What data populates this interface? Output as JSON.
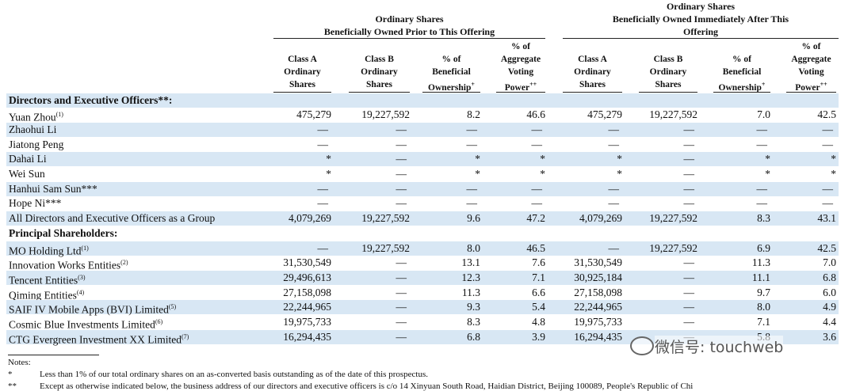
{
  "groups": [
    {
      "title": [
        "Ordinary Shares",
        "Beneficially Owned Prior to This Offering"
      ]
    },
    {
      "title": [
        "Ordinary Shares",
        "Beneficially Owned Immediately After This",
        "Offering"
      ]
    }
  ],
  "columns": [
    {
      "label": [
        "Class A",
        "Ordinary",
        "Shares"
      ]
    },
    {
      "label": [
        "Class B",
        "Ordinary",
        "Shares"
      ]
    },
    {
      "label": [
        "% of",
        "Beneficial",
        "Ownership"
      ],
      "mark": "+"
    },
    {
      "label": [
        "% of",
        "Aggregate",
        "Voting",
        "Power"
      ],
      "mark": "++"
    },
    {
      "label": [
        "Class A",
        "Ordinary",
        "Shares"
      ]
    },
    {
      "label": [
        "Class B",
        "Ordinary",
        "Shares"
      ]
    },
    {
      "label": [
        "% of",
        "Beneficial",
        "Ownership"
      ],
      "mark": "+"
    },
    {
      "label": [
        "% of",
        "Aggregate",
        "Voting",
        "Power"
      ],
      "mark": "++"
    }
  ],
  "sections": [
    {
      "title": "Directors and Executive Officers**:",
      "rows": [
        {
          "name": "Yuan Zhou",
          "note": "(1)",
          "cells": [
            "475,279",
            "19,227,592",
            "8.2",
            "46.6",
            "475,279",
            "19,227,592",
            "7.0",
            "42.5"
          ]
        },
        {
          "name": "Zhaohui Li",
          "cells": [
            "—",
            "—",
            "—",
            "—",
            "—",
            "—",
            "—",
            "—"
          ]
        },
        {
          "name": "Jiatong Peng",
          "cells": [
            "—",
            "—",
            "—",
            "—",
            "—",
            "—",
            "—",
            "—"
          ]
        },
        {
          "name": "Dahai Li",
          "cells": [
            "*",
            "—",
            "*",
            "*",
            "*",
            "—",
            "*",
            "*"
          ]
        },
        {
          "name": "Wei Sun",
          "cells": [
            "*",
            "—",
            "*",
            "*",
            "*",
            "—",
            "*",
            "*"
          ]
        },
        {
          "name": "Hanhui Sam Sun***",
          "cells": [
            "—",
            "—",
            "—",
            "—",
            "—",
            "—",
            "—",
            "—"
          ]
        },
        {
          "name": "Hope Ni***",
          "cells": [
            "—",
            "—",
            "—",
            "—",
            "—",
            "—",
            "—",
            "—"
          ]
        },
        {
          "name": "All Directors and Executive Officers as a Group",
          "cells": [
            "4,079,269",
            "19,227,592",
            "9.6",
            "47.2",
            "4,079,269",
            "19,227,592",
            "8.3",
            "43.1"
          ]
        }
      ]
    },
    {
      "title": "Principal Shareholders:",
      "rows": [
        {
          "name": "MO Holding Ltd",
          "note": "(1)",
          "cells": [
            "—",
            "19,227,592",
            "8.0",
            "46.5",
            "—",
            "19,227,592",
            "6.9",
            "42.5"
          ]
        },
        {
          "name": "Innovation Works Entities",
          "note": "(2)",
          "cells": [
            "31,530,549",
            "—",
            "13.1",
            "7.6",
            "31,530,549",
            "—",
            "11.3",
            "7.0"
          ]
        },
        {
          "name": "Tencent Entities",
          "note": "(3)",
          "cells": [
            "29,496,613",
            "—",
            "12.3",
            "7.1",
            "30,925,184",
            "—",
            "11.1",
            "6.8"
          ]
        },
        {
          "name": "Qiming Entities",
          "note": "(4)",
          "cells": [
            "27,158,098",
            "—",
            "11.3",
            "6.6",
            "27,158,098",
            "—",
            "9.7",
            "6.0"
          ]
        },
        {
          "name": "SAIF IV Mobile Apps (BVI) Limited",
          "note": "(5)",
          "cells": [
            "22,244,965",
            "—",
            "9.3",
            "5.4",
            "22,244,965",
            "—",
            "8.0",
            "4.9"
          ]
        },
        {
          "name": "Cosmic Blue Investments Limited",
          "note": "(6)",
          "cells": [
            "19,975,733",
            "—",
            "8.3",
            "4.8",
            "19,975,733",
            "—",
            "7.1",
            "4.4"
          ]
        },
        {
          "name": "CTG Evergreen Investment XX Limited",
          "note": "(7)",
          "cells": [
            "16,294,435",
            "—",
            "6.8",
            "3.9",
            "16,294,435",
            "—",
            "5.8",
            "3.6"
          ]
        }
      ]
    }
  ],
  "notes": {
    "title": "Notes:",
    "items": [
      {
        "symbol": "*",
        "text": "Less than 1% of our total ordinary shares on an as-converted basis outstanding as of the date of this prospectus."
      },
      {
        "symbol": "**",
        "text": "Except as otherwise indicated below, the business address of our directors and executive officers is c/o 14 Xinyuan South Road, Haidian District, Beijing 100089, People's Republic of Chi"
      }
    ]
  },
  "watermark": "微信号: touchweb"
}
